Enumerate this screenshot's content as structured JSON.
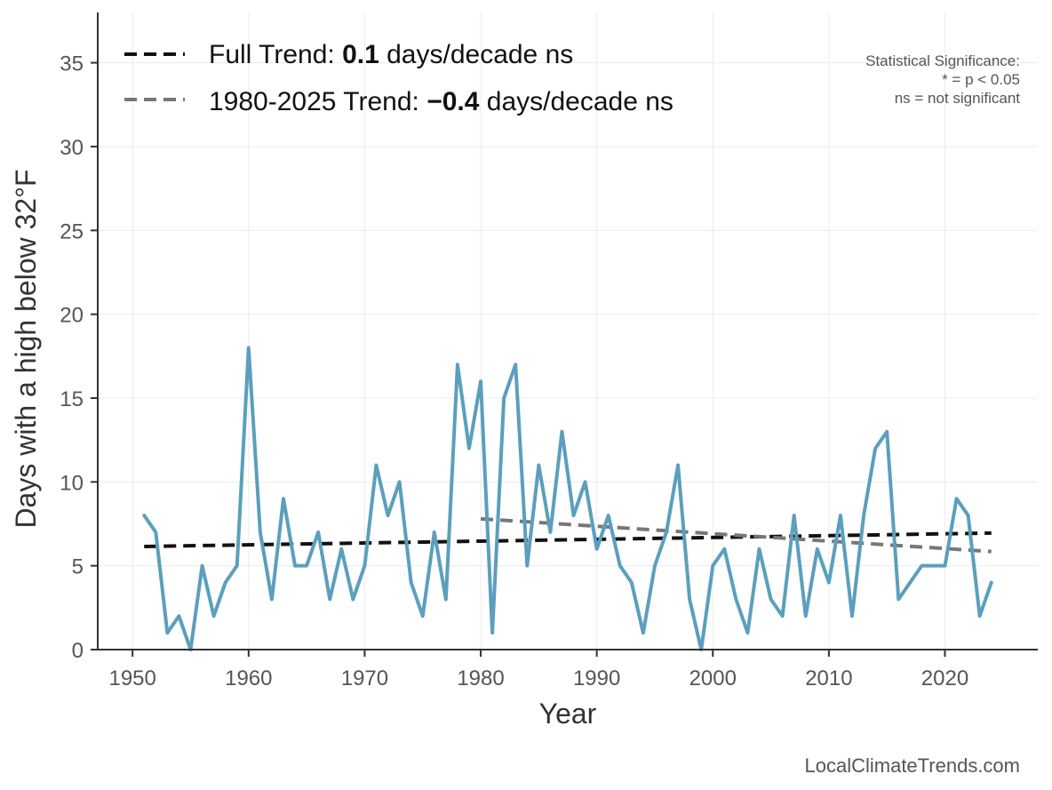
{
  "chart_data": {
    "type": "line",
    "xlabel": "Year",
    "ylabel": "Days with a high below 32°F",
    "xlim": [
      1947,
      2028
    ],
    "ylim": [
      0,
      38
    ],
    "xticks": [
      1950,
      1960,
      1970,
      1980,
      1990,
      2000,
      2010,
      2020
    ],
    "yticks": [
      0,
      5,
      10,
      15,
      20,
      25,
      30,
      35
    ],
    "grid": true,
    "series": [
      {
        "color": "#5b9fbd",
        "x": [
          1951,
          1952,
          1953,
          1954,
          1955,
          1956,
          1957,
          1958,
          1959,
          1960,
          1961,
          1962,
          1963,
          1964,
          1965,
          1966,
          1967,
          1968,
          1969,
          1970,
          1971,
          1972,
          1973,
          1974,
          1975,
          1976,
          1977,
          1978,
          1979,
          1980,
          1981,
          1982,
          1983,
          1984,
          1985,
          1986,
          1987,
          1988,
          1989,
          1990,
          1991,
          1992,
          1993,
          1994,
          1995,
          1996,
          1997,
          1998,
          1999,
          2000,
          2001,
          2002,
          2003,
          2004,
          2005,
          2006,
          2007,
          2008,
          2009,
          2010,
          2011,
          2012,
          2013,
          2014,
          2015,
          2016,
          2017,
          2018,
          2019,
          2020,
          2021,
          2022,
          2023,
          2024
        ],
        "values": [
          8,
          7,
          1,
          2,
          0,
          5,
          2,
          4,
          5,
          18,
          7,
          3,
          9,
          5,
          5,
          7,
          3,
          6,
          3,
          5,
          11,
          8,
          10,
          4,
          2,
          7,
          3,
          17,
          12,
          16,
          1,
          15,
          17,
          5,
          11,
          7,
          13,
          8,
          10,
          6,
          8,
          5,
          4,
          1,
          5,
          7,
          11,
          3,
          0,
          5,
          6,
          3,
          1,
          6,
          3,
          2,
          8,
          2,
          6,
          4,
          8,
          2,
          8,
          12,
          13,
          3,
          4,
          5,
          5,
          5,
          9,
          8,
          2,
          4
        ]
      }
    ],
    "trends": [
      {
        "label_prefix": "Full Trend: ",
        "label_value": "0.1",
        "label_suffix": " days/decade ns",
        "color": "#111111",
        "x": [
          1951,
          2024
        ],
        "y": [
          6.15,
          6.95
        ]
      },
      {
        "label_prefix": "1980-2025 Trend: ",
        "label_value": "−0.4",
        "label_suffix": " days/decade ns",
        "color": "#777777",
        "x": [
          1980,
          2024
        ],
        "y": [
          7.8,
          5.85
        ]
      }
    ],
    "legend_position": "top-left",
    "annotation": {
      "lines": [
        "Statistical Significance:",
        "* = p < 0.05",
        "ns = not significant"
      ],
      "position": "top-right"
    },
    "credit": "LocalClimateTrends.com"
  }
}
